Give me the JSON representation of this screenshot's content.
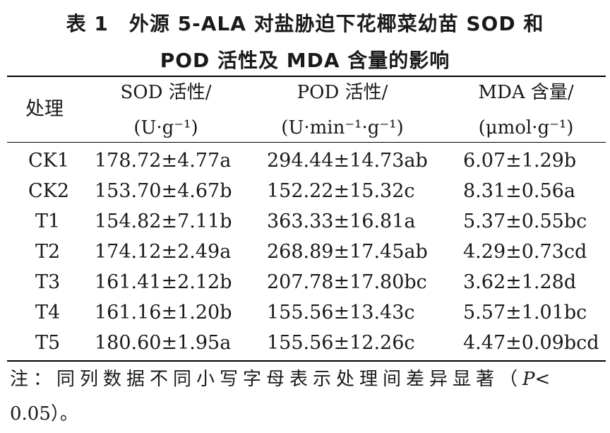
{
  "title": {
    "line1": "表 1　外源 5-ALA 对盐胁迫下花椰菜幼苗 SOD 和",
    "line2": "POD 活性及 MDA 含量的影响"
  },
  "table": {
    "header": {
      "treatment": "处理",
      "sod_name": "SOD 活性/",
      "sod_unit": "(U·g⁻¹)",
      "pod_name": "POD 活性/",
      "pod_unit": "(U·min⁻¹·g⁻¹)",
      "mda_name": "MDA 含量/",
      "mda_unit": "(μmol·g⁻¹)"
    },
    "rows": [
      {
        "treatment": "CK1",
        "sod": "178.72±4.77a",
        "pod": "294.44±14.73ab",
        "mda": "6.07±1.29b"
      },
      {
        "treatment": "CK2",
        "sod": "153.70±4.67b",
        "pod": "152.22±15.32c",
        "mda": "8.31±0.56a"
      },
      {
        "treatment": "T1",
        "sod": "154.82±7.11b",
        "pod": "363.33±16.81a",
        "mda": "5.37±0.55bc"
      },
      {
        "treatment": "T2",
        "sod": "174.12±2.49a",
        "pod": "268.89±17.45ab",
        "mda": "4.29±0.73cd"
      },
      {
        "treatment": "T3",
        "sod": "161.41±2.12b",
        "pod": "207.78±17.80bc",
        "mda": "3.62±1.28d"
      },
      {
        "treatment": "T4",
        "sod": "161.16±1.20b",
        "pod": "155.56±13.43c",
        "mda": "5.57±1.01bc"
      },
      {
        "treatment": "T5",
        "sod": "180.60±1.95a",
        "pod": "155.56±12.26c",
        "mda": "4.47±0.09bcd"
      }
    ]
  },
  "note": {
    "line1_prefix": "注：同列数据不同小写字母表示处理间差异显著（",
    "p_symbol": "P",
    "line1_suffix": "<",
    "line2": "0.05）。"
  }
}
